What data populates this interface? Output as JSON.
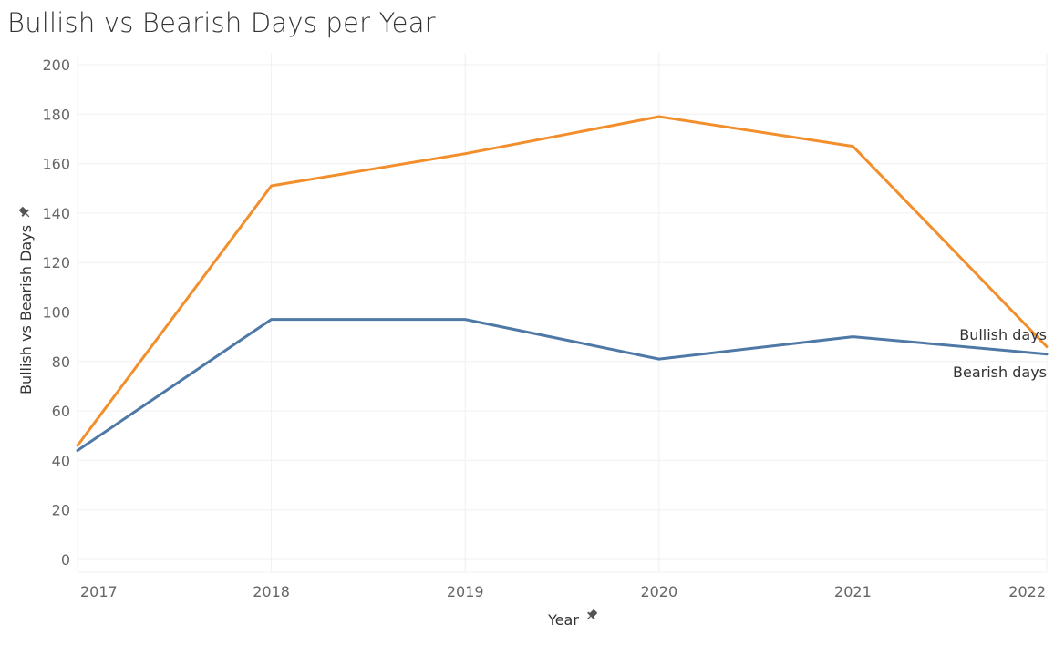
{
  "title": "Bullish vs Bearish Days per Year",
  "chart_data": {
    "type": "line",
    "title": "Bullish vs Bearish Days per Year",
    "xlabel": "Year",
    "ylabel": "Bullish vs Bearish Days",
    "x": [
      "2017",
      "2018",
      "2019",
      "2020",
      "2021",
      "2022"
    ],
    "ylim": [
      0,
      200
    ],
    "yticks": [
      0,
      20,
      40,
      60,
      80,
      100,
      120,
      140,
      160,
      180,
      200
    ],
    "grid": true,
    "series": [
      {
        "name": "Bullish days",
        "color": "#f28e2b",
        "values": [
          46,
          151,
          164,
          179,
          167,
          86
        ]
      },
      {
        "name": "Bearish days",
        "color": "#4e79a7",
        "values": [
          44,
          97,
          97,
          81,
          90,
          83
        ]
      }
    ],
    "icons": {
      "axis_pin": "pin-icon"
    }
  }
}
